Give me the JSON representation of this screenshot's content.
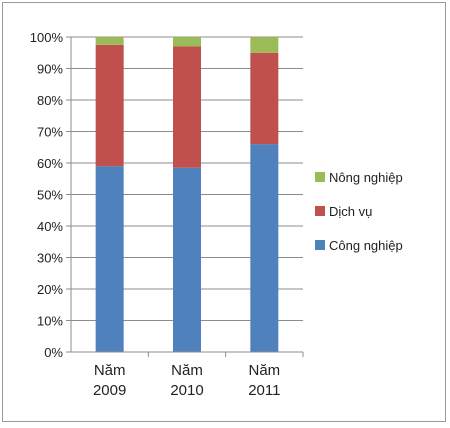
{
  "chart_data": {
    "type": "bar",
    "stacked": true,
    "percent_stacked": true,
    "categories": [
      [
        "Năm",
        "2009"
      ],
      [
        "Năm",
        "2010"
      ],
      [
        "Năm",
        "2011"
      ]
    ],
    "series": [
      {
        "name": "Công nghiệp",
        "color": "#4F81BD",
        "values": [
          59,
          58.5,
          66
        ]
      },
      {
        "name": "Dịch vụ",
        "color": "#C0504D",
        "values": [
          38.5,
          38.5,
          29
        ]
      },
      {
        "name": "Nông nghiệp",
        "color": "#9BBB59",
        "values": [
          2.5,
          3,
          5
        ]
      }
    ],
    "ylim": [
      0,
      100
    ],
    "yticks": [
      "0%",
      "10%",
      "20%",
      "30%",
      "40%",
      "50%",
      "60%",
      "70%",
      "80%",
      "90%",
      "100%"
    ],
    "grid": true,
    "legend_position": "right",
    "legend_order": [
      "Nông nghiệp",
      "Dịch vụ",
      "Công nghiệp"
    ],
    "title": "",
    "xlabel": "",
    "ylabel": ""
  }
}
